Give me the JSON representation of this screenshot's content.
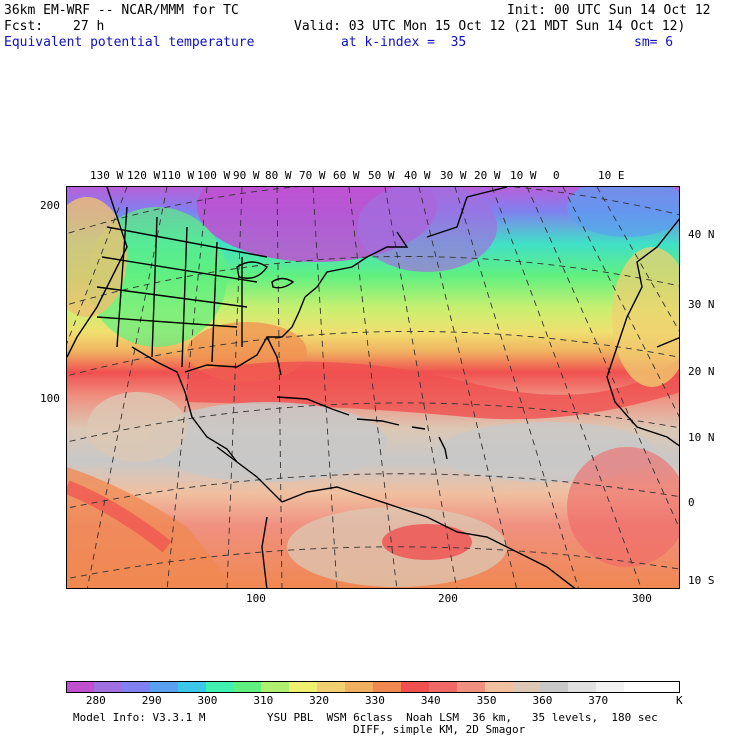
{
  "header": {
    "model": "36km EM-WRF -- NCAR/MMM for TC",
    "init": "Init: 00 UTC Sun 14 Oct 12",
    "fcst_label": "Fcst:",
    "fcst_value": "27 h",
    "valid": "Valid: 03 UTC Mon 15 Oct 12 (21 MDT Sun 14 Oct 12)",
    "field": "Equivalent potential temperature",
    "level": "at k-index =  35",
    "smooth": "sm= 6"
  },
  "map": {
    "top_lon_labels": [
      "130 W",
      "120 W",
      "110 W",
      "100 W",
      "90 W",
      "80 W",
      "70 W",
      "60 W",
      "50 W",
      "40 W",
      "30 W",
      "20 W",
      "10 W",
      "0",
      "10 E"
    ],
    "right_lat_labels": [
      "40 N",
      "30 N",
      "20 N",
      "10 N",
      "0",
      "10 S"
    ],
    "left_grid_labels": [
      "200",
      "100"
    ],
    "bottom_grid_labels": [
      "100",
      "200",
      "300"
    ]
  },
  "colorbar": {
    "colors": [
      "#c050d0",
      "#a070e0",
      "#8080f0",
      "#5aa0f0",
      "#3cc8e8",
      "#40f0b0",
      "#60f080",
      "#b0f070",
      "#f0f070",
      "#f0d070",
      "#f0b060",
      "#f08850",
      "#f05050",
      "#f06868",
      "#f09080",
      "#f0c0a0",
      "#dcc8b4",
      "#c8c8c8",
      "#e0e0e0",
      "#f2f2f2",
      "#ffffff",
      "#ffffff"
    ],
    "tick_labels": [
      "280",
      "290",
      "300",
      "310",
      "320",
      "330",
      "340",
      "350",
      "360",
      "370"
    ],
    "unit": "K"
  },
  "footer": {
    "info": "Model Info: V3.3.1 M",
    "physics": "YSU PBL  WSM 6class  Noah LSM  36 km,   35 levels,  180 sec",
    "diff": "DIFF, simple KM, 2D Smagor"
  }
}
